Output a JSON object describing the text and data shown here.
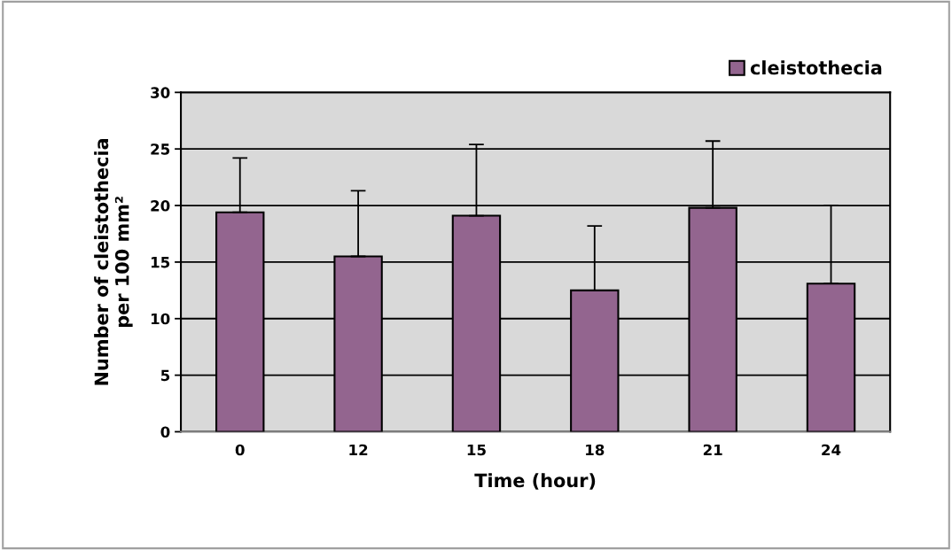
{
  "chart_data": {
    "type": "bar",
    "xlabel": "Time (hour)",
    "ylabel": "Number of cleistothecia\nper 100 mm²",
    "categories": [
      "0",
      "12",
      "15",
      "18",
      "21",
      "24"
    ],
    "series": [
      {
        "name": "cleistothecia",
        "color": "#93658f",
        "values": [
          19.4,
          15.5,
          19.1,
          12.5,
          19.8,
          13.1
        ],
        "errors": [
          [
            19.4,
            24.2
          ],
          [
            15.5,
            21.3
          ],
          [
            19.1,
            25.4
          ],
          [
            12.5,
            18.2
          ],
          [
            19.8,
            25.7
          ],
          [
            13.1,
            20.0
          ]
        ]
      }
    ],
    "ylim": [
      0,
      30
    ],
    "yticks": [
      0,
      5,
      10,
      15,
      20,
      25,
      30
    ],
    "grid": "y",
    "legend": "top right"
  }
}
